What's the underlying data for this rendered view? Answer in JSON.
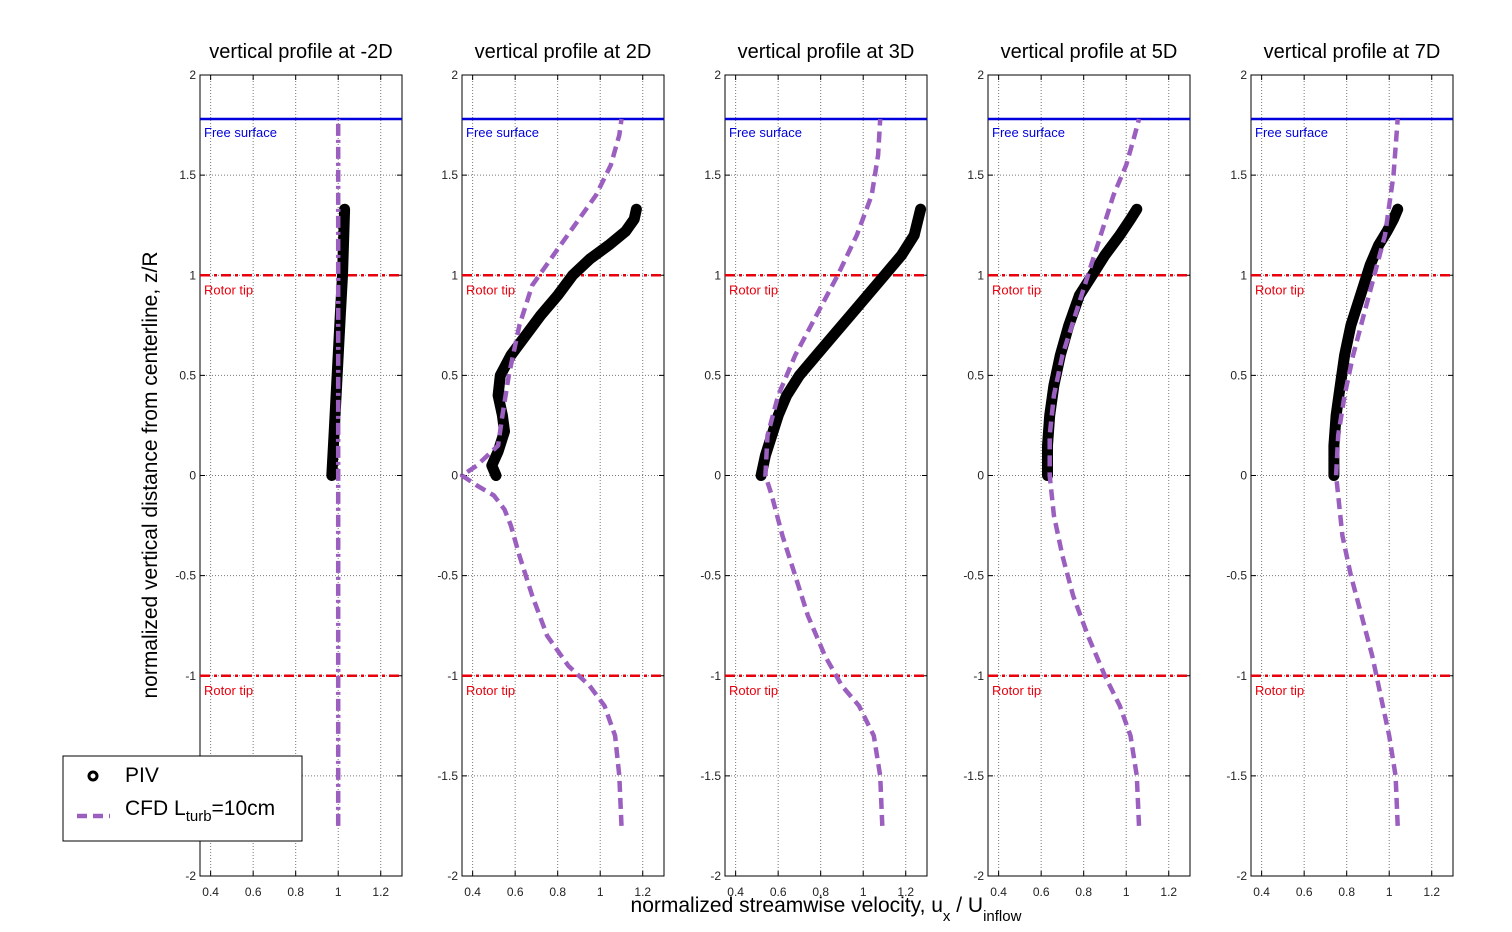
{
  "chart_data": {
    "type": "line",
    "ylabel": "normalized vertical distance from centerline, z/R",
    "xlabel": {
      "main": "normalized streamwise velocity, u",
      "sub1": "x",
      "mid": " / U",
      "sub2": "inflow"
    },
    "xlim": [
      0.35,
      1.3
    ],
    "ylim": [
      -2,
      2
    ],
    "xticks": [
      0.4,
      0.6,
      0.8,
      1,
      1.2
    ],
    "xtick_labels": [
      "0.4",
      "0.6",
      "0.8",
      "1",
      "1.2"
    ],
    "yticks": [
      -2,
      -1.5,
      -1,
      -0.5,
      0,
      0.5,
      1,
      1.5,
      2
    ],
    "ytick_labels": [
      "-2",
      "-1.5",
      "-1",
      "-0.5",
      "0",
      "0.5",
      "1",
      "1.5",
      "2"
    ],
    "grid": true,
    "free_surface_z": 1.78,
    "free_surface_label": "Free surface",
    "rotor_tip_z": [
      1,
      -1
    ],
    "rotor_tip_label": "Rotor tip",
    "colors": {
      "piv": "#000000",
      "cfd": "#9b5fc0",
      "free_surface": "#0000dd",
      "rotor_tip": "#e8000d"
    },
    "legend": {
      "placement": "bottom-left",
      "piv_label": "PIV",
      "cfd_label_main": "CFD L",
      "cfd_label_sub": "turb",
      "cfd_label_tail": "=10cm"
    },
    "panels": [
      {
        "title": "vertical profile at -2D",
        "piv": {
          "x": [
            0.97,
            0.98,
            0.99,
            1.0,
            1.01,
            1.02,
            1.03
          ],
          "y": [
            0.0,
            0.2,
            0.4,
            0.6,
            0.8,
            1.0,
            1.33
          ]
        },
        "cfd": {
          "x": [
            1.0,
            1.0,
            1.0,
            1.0,
            1.0
          ],
          "y": [
            -1.75,
            -1.0,
            0.0,
            1.0,
            1.78
          ]
        }
      },
      {
        "title": "vertical profile at 2D",
        "piv": {
          "x": [
            0.51,
            0.49,
            0.52,
            0.55,
            0.54,
            0.52,
            0.53,
            0.58,
            0.65,
            0.72,
            0.8,
            0.87,
            0.95,
            1.04,
            1.12,
            1.16,
            1.17
          ],
          "y": [
            0.0,
            0.05,
            0.12,
            0.22,
            0.3,
            0.4,
            0.5,
            0.6,
            0.7,
            0.8,
            0.9,
            1.0,
            1.08,
            1.15,
            1.22,
            1.28,
            1.33
          ]
        },
        "cfd": {
          "x": [
            1.1,
            1.09,
            1.07,
            1.02,
            0.95,
            0.85,
            0.75,
            0.68,
            0.62,
            0.58,
            0.55,
            0.5,
            0.42,
            0.35,
            0.42,
            0.52,
            0.54,
            0.57,
            0.62,
            0.68,
            0.78,
            0.88,
            0.98,
            1.05,
            1.09,
            1.1
          ],
          "y": [
            -1.75,
            -1.5,
            -1.3,
            -1.15,
            -1.05,
            -0.95,
            -0.8,
            -0.6,
            -0.4,
            -0.25,
            -0.17,
            -0.1,
            -0.05,
            0.0,
            0.05,
            0.15,
            0.3,
            0.5,
            0.75,
            0.95,
            1.1,
            1.25,
            1.4,
            1.55,
            1.7,
            1.78
          ]
        }
      },
      {
        "title": "vertical profile at 3D",
        "piv": {
          "x": [
            0.52,
            0.54,
            0.57,
            0.6,
            0.64,
            0.7,
            0.78,
            0.86,
            0.94,
            1.02,
            1.1,
            1.18,
            1.24,
            1.27
          ],
          "y": [
            0.0,
            0.1,
            0.2,
            0.3,
            0.4,
            0.5,
            0.6,
            0.7,
            0.8,
            0.9,
            1.0,
            1.1,
            1.2,
            1.33
          ]
        },
        "cfd": {
          "x": [
            1.09,
            1.08,
            1.05,
            0.98,
            0.9,
            0.82,
            0.74,
            0.68,
            0.62,
            0.57,
            0.54,
            0.55,
            0.6,
            0.68,
            0.78,
            0.88,
            0.97,
            1.04,
            1.07,
            1.08
          ],
          "y": [
            -1.75,
            -1.5,
            -1.3,
            -1.15,
            -1.05,
            -0.9,
            -0.7,
            -0.5,
            -0.3,
            -0.1,
            0.0,
            0.2,
            0.4,
            0.6,
            0.8,
            1.0,
            1.2,
            1.4,
            1.6,
            1.78
          ]
        }
      },
      {
        "title": "vertical profile at 5D",
        "piv": {
          "x": [
            0.63,
            0.63,
            0.64,
            0.66,
            0.69,
            0.73,
            0.78,
            0.84,
            0.9,
            0.97,
            1.02,
            1.05
          ],
          "y": [
            0.0,
            0.15,
            0.3,
            0.45,
            0.6,
            0.75,
            0.9,
            1.0,
            1.1,
            1.2,
            1.28,
            1.33
          ]
        },
        "cfd": {
          "x": [
            1.06,
            1.05,
            1.02,
            0.97,
            0.9,
            0.82,
            0.75,
            0.7,
            0.66,
            0.64,
            0.64,
            0.66,
            0.7,
            0.76,
            0.82,
            0.88,
            0.94,
            1.0,
            1.04,
            1.06
          ],
          "y": [
            -1.75,
            -1.5,
            -1.3,
            -1.15,
            -1.0,
            -0.8,
            -0.6,
            -0.4,
            -0.2,
            0.0,
            0.2,
            0.4,
            0.6,
            0.8,
            1.0,
            1.2,
            1.4,
            1.55,
            1.7,
            1.78
          ]
        }
      },
      {
        "title": "vertical profile at 7D",
        "piv": {
          "x": [
            0.74,
            0.74,
            0.75,
            0.77,
            0.79,
            0.82,
            0.85,
            0.88,
            0.91,
            0.95,
            0.99,
            1.02,
            1.04
          ],
          "y": [
            0.0,
            0.15,
            0.3,
            0.45,
            0.6,
            0.75,
            0.85,
            0.95,
            1.05,
            1.15,
            1.22,
            1.28,
            1.33
          ]
        },
        "cfd": {
          "x": [
            1.04,
            1.03,
            1.0,
            0.96,
            0.92,
            0.87,
            0.82,
            0.78,
            0.76,
            0.75,
            0.76,
            0.79,
            0.83,
            0.88,
            0.93,
            0.98,
            1.02,
            1.04
          ],
          "y": [
            -1.75,
            -1.5,
            -1.3,
            -1.1,
            -0.9,
            -0.7,
            -0.5,
            -0.3,
            -0.1,
            0.0,
            0.2,
            0.4,
            0.6,
            0.8,
            1.0,
            1.2,
            1.5,
            1.78
          ]
        }
      }
    ]
  }
}
